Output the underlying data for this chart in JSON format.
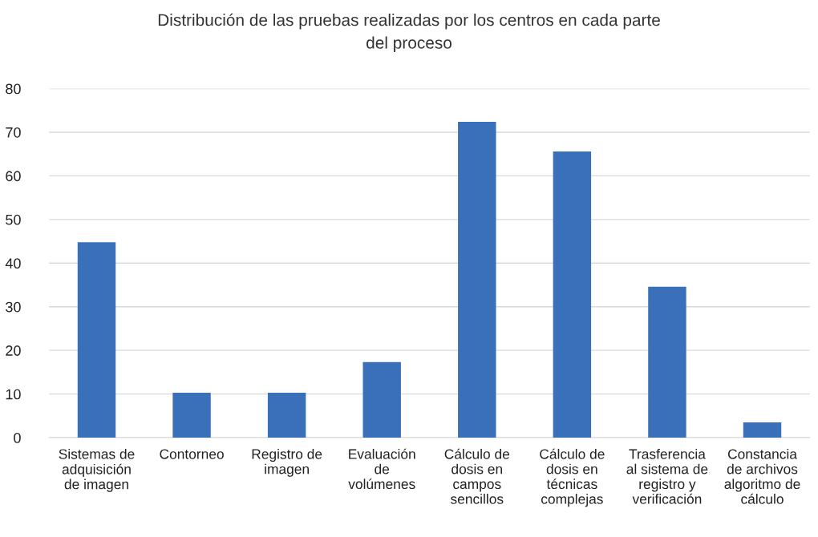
{
  "chart_data": {
    "type": "bar",
    "title": "Distribución de las pruebas realizadas por los centros en cada parte\ndel proceso",
    "categories": [
      "Sistemas de\nadquisición\nde imagen",
      "Contorneo",
      "Registro de\nimagen",
      "Evaluación\nde\nvolúmenes",
      "Cálculo de\ndosis en\ncampos\nsencillos",
      "Cálculo de\ndosis en\ntécnicas\ncomplejas",
      "Trasferencia\nal sistema de\nregistro y\nverificación",
      "Constancia\nde archivos\nalgoritmo de\ncálculo"
    ],
    "values": [
      44.8,
      10.3,
      10.3,
      17.3,
      72.4,
      65.6,
      34.6,
      3.5
    ],
    "color": "#3a70b9",
    "ylim": [
      0,
      80
    ],
    "yticks": [
      0,
      10,
      20,
      30,
      40,
      50,
      60,
      70,
      80
    ],
    "grid": "y",
    "legend": false
  }
}
